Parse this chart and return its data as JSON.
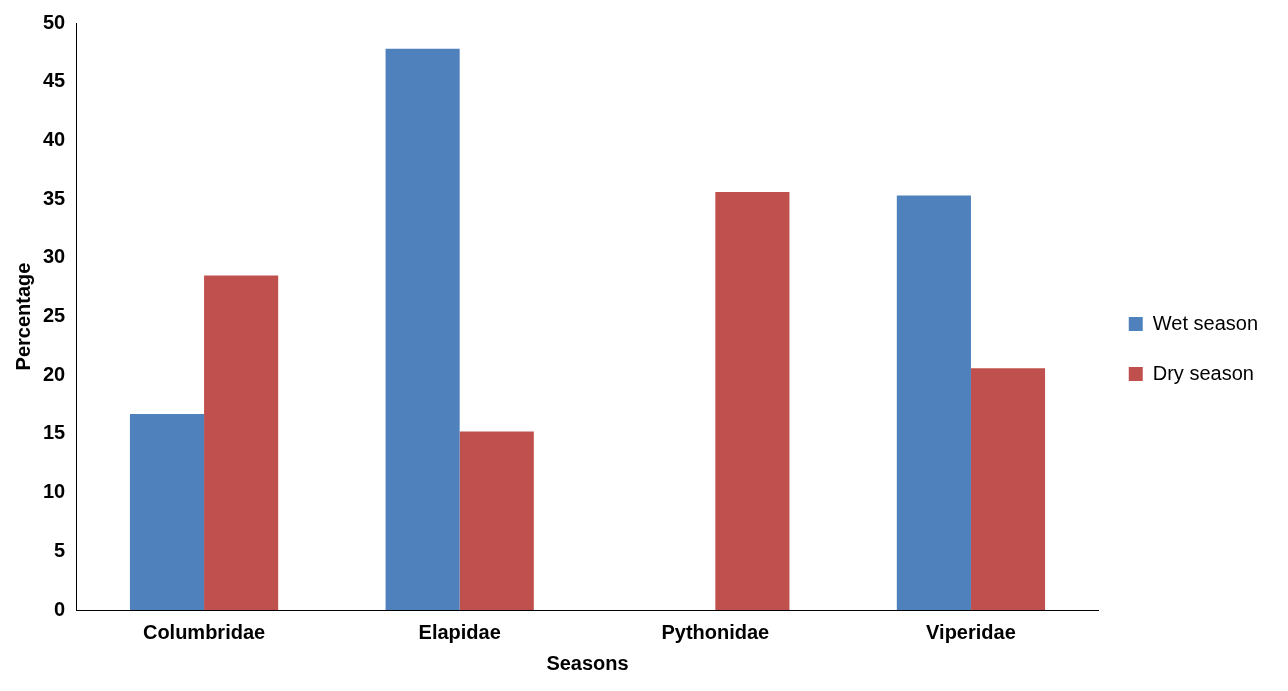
{
  "chart_data": {
    "type": "bar",
    "xlabel": "Seasons",
    "ylabel": "Percentage",
    "categories": [
      "Columbridae",
      "Elapidae",
      "Pythonidae",
      "Viperidae"
    ],
    "series": [
      {
        "name": "Wet season",
        "color": "#4f81bd",
        "values": [
          16.7,
          47.8,
          0,
          35.3
        ]
      },
      {
        "name": "Dry season",
        "color": "#c0504d",
        "values": [
          28.5,
          15.2,
          35.6,
          20.6
        ]
      }
    ],
    "ylim": [
      0,
      50
    ],
    "yticks": [
      0,
      5,
      10,
      15,
      20,
      25,
      30,
      35,
      40,
      45,
      50
    ],
    "grid": false,
    "legend": "right"
  }
}
